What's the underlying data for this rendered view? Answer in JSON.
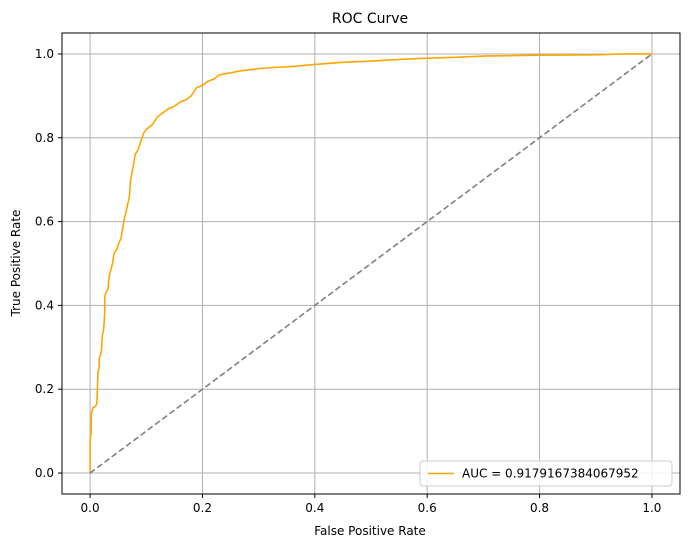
{
  "chart_data": {
    "type": "line",
    "title": "ROC Curve",
    "xlabel": "False Positive Rate",
    "ylabel": "True Positive Rate",
    "xlim": [
      -0.05,
      1.05
    ],
    "ylim": [
      -0.05,
      1.05
    ],
    "x_ticks": [
      0.0,
      0.2,
      0.4,
      0.6,
      0.8,
      1.0
    ],
    "x_tick_labels": [
      "0.0",
      "0.2",
      "0.4",
      "0.6",
      "0.8",
      "1.0"
    ],
    "y_ticks": [
      0.0,
      0.2,
      0.4,
      0.6,
      0.8,
      1.0
    ],
    "y_tick_labels": [
      "0.0",
      "0.2",
      "0.4",
      "0.6",
      "0.8",
      "1.0"
    ],
    "grid": true,
    "legend_position": "lower-right",
    "series": [
      {
        "name": "AUC = 0.9179167384067952",
        "color": "#ffa500",
        "style": "solid",
        "x": [
          0,
          0,
          0.002,
          0.002,
          0.005,
          0.01,
          0.012,
          0.014,
          0.016,
          0.016,
          0.018,
          0.02,
          0.022,
          0.024,
          0.026,
          0.026,
          0.028,
          0.03,
          0.032,
          0.034,
          0.036,
          0.04,
          0.042,
          0.045,
          0.048,
          0.05,
          0.055,
          0.06,
          0.065,
          0.07,
          0.072,
          0.075,
          0.078,
          0.08,
          0.085,
          0.09,
          0.095,
          0.1,
          0.105,
          0.11,
          0.115,
          0.12,
          0.125,
          0.13,
          0.135,
          0.14,
          0.15,
          0.155,
          0.16,
          0.17,
          0.18,
          0.185,
          0.19,
          0.2,
          0.205,
          0.21,
          0.22,
          0.23,
          0.25,
          0.27,
          0.3,
          0.33,
          0.36,
          0.4,
          0.45,
          0.5,
          0.55,
          0.6,
          0.65,
          0.7,
          0.8,
          0.9,
          0.95,
          1.0
        ],
        "y": [
          0,
          0.08,
          0.1,
          0.14,
          0.155,
          0.16,
          0.165,
          0.24,
          0.25,
          0.27,
          0.28,
          0.29,
          0.33,
          0.34,
          0.38,
          0.42,
          0.43,
          0.435,
          0.44,
          0.47,
          0.48,
          0.5,
          0.52,
          0.53,
          0.535,
          0.545,
          0.56,
          0.6,
          0.63,
          0.66,
          0.7,
          0.72,
          0.74,
          0.76,
          0.77,
          0.79,
          0.81,
          0.82,
          0.825,
          0.83,
          0.84,
          0.85,
          0.855,
          0.86,
          0.865,
          0.87,
          0.875,
          0.88,
          0.885,
          0.89,
          0.9,
          0.91,
          0.92,
          0.925,
          0.93,
          0.935,
          0.94,
          0.95,
          0.955,
          0.96,
          0.965,
          0.968,
          0.97,
          0.975,
          0.98,
          0.983,
          0.987,
          0.99,
          0.992,
          0.995,
          0.997,
          0.998,
          1.0,
          1.0
        ]
      },
      {
        "name": "",
        "color": "#808080",
        "style": "dashed",
        "x": [
          0,
          1
        ],
        "y": [
          0,
          1
        ]
      }
    ]
  }
}
